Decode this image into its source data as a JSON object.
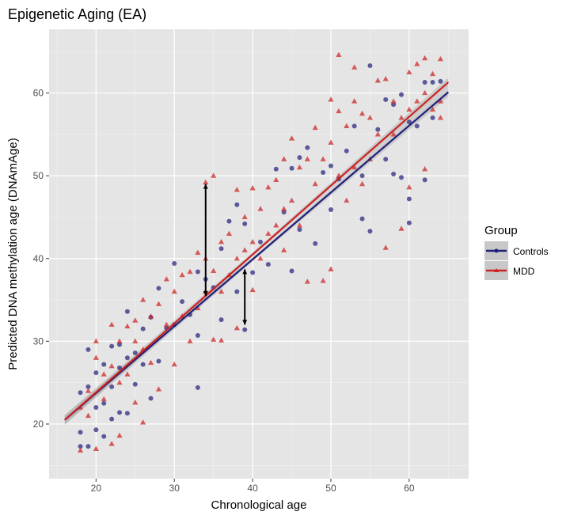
{
  "chart_data": {
    "type": "scatter",
    "title": "Epigenetic Aging (EA)",
    "xlabel": "Chronological age",
    "ylabel": "Predicted DNA methylation age (DNAmAge)",
    "xlim": [
      14.0,
      67.6
    ],
    "ylim": [
      13.4,
      67.7
    ],
    "xticks": [
      20,
      30,
      40,
      50,
      60
    ],
    "yticks": [
      20,
      30,
      40,
      50,
      60
    ],
    "grid": true,
    "background": "#e5e5e5",
    "legend": {
      "title": "Group",
      "placement": "right"
    },
    "series": [
      {
        "name": "Controls",
        "marker": "circle",
        "color": "#1f1f7a",
        "fit_line": {
          "x": [
            16,
            65
          ],
          "y": [
            20.5,
            60.1
          ]
        },
        "points": [
          [
            18,
            23.8
          ],
          [
            18,
            19
          ],
          [
            18,
            17.3
          ],
          [
            19,
            29
          ],
          [
            19,
            24.5
          ],
          [
            19,
            17.3
          ],
          [
            20,
            26.2
          ],
          [
            20,
            22
          ],
          [
            20,
            19.3
          ],
          [
            21,
            27.2
          ],
          [
            21,
            22.5
          ],
          [
            21,
            18.5
          ],
          [
            22,
            29.4
          ],
          [
            22,
            24.5
          ],
          [
            22,
            20.6
          ],
          [
            23,
            29.6
          ],
          [
            23,
            26.8
          ],
          [
            23,
            21.4
          ],
          [
            24,
            33.6
          ],
          [
            24,
            28
          ],
          [
            24,
            21.3
          ],
          [
            25,
            28.6
          ],
          [
            25,
            24.8
          ],
          [
            26,
            31.5
          ],
          [
            26,
            27.2
          ],
          [
            27,
            32.9
          ],
          [
            27,
            23.1
          ],
          [
            28,
            36.4
          ],
          [
            28,
            27.6
          ],
          [
            29,
            31.6
          ],
          [
            30,
            39.4
          ],
          [
            30,
            32
          ],
          [
            31,
            34.8
          ],
          [
            32,
            33.2
          ],
          [
            33,
            38.4
          ],
          [
            33,
            30.7
          ],
          [
            33,
            24.4
          ],
          [
            34,
            37.5
          ],
          [
            35,
            36.5
          ],
          [
            36,
            41.2
          ],
          [
            36,
            32.6
          ],
          [
            37,
            44.5
          ],
          [
            38,
            46.5
          ],
          [
            38,
            36
          ],
          [
            39,
            31.4
          ],
          [
            39,
            44.2
          ],
          [
            40,
            38.3
          ],
          [
            41,
            42
          ],
          [
            42,
            39.3
          ],
          [
            43,
            50.8
          ],
          [
            44,
            45.6
          ],
          [
            45,
            50.9
          ],
          [
            45,
            38.5
          ],
          [
            46,
            52.2
          ],
          [
            46,
            43.5
          ],
          [
            47,
            53.4
          ],
          [
            48,
            41.8
          ],
          [
            49,
            50.4
          ],
          [
            50,
            51.2
          ],
          [
            50,
            45.9
          ],
          [
            51,
            49.6
          ],
          [
            52,
            53
          ],
          [
            53,
            56
          ],
          [
            54,
            44.8
          ],
          [
            54,
            50
          ],
          [
            55,
            63.3
          ],
          [
            55,
            43.3
          ],
          [
            56,
            55.6
          ],
          [
            57,
            59.2
          ],
          [
            57,
            52
          ],
          [
            58,
            58.6
          ],
          [
            58,
            50.2
          ],
          [
            59,
            59.8
          ],
          [
            59,
            49.8
          ],
          [
            60,
            56.5
          ],
          [
            60,
            47.2
          ],
          [
            60,
            44.3
          ],
          [
            61,
            56
          ],
          [
            62,
            61.3
          ],
          [
            62,
            49.5
          ],
          [
            63,
            61.3
          ],
          [
            63,
            57
          ],
          [
            64,
            61.4
          ]
        ]
      },
      {
        "name": "MDD",
        "marker": "triangle",
        "color": "#cc2222",
        "fit_line": {
          "x": [
            16,
            65
          ],
          "y": [
            20.5,
            61.3
          ]
        },
        "points": [
          [
            18,
            16.8
          ],
          [
            18,
            22
          ],
          [
            19,
            21
          ],
          [
            19,
            24
          ],
          [
            20,
            30
          ],
          [
            20,
            28
          ],
          [
            20,
            17
          ],
          [
            21,
            26
          ],
          [
            21,
            23
          ],
          [
            22,
            32
          ],
          [
            22,
            27
          ],
          [
            22,
            17.6
          ],
          [
            23,
            30
          ],
          [
            23,
            25
          ],
          [
            23,
            18.6
          ],
          [
            24,
            31.8
          ],
          [
            24,
            26
          ],
          [
            25,
            32.5
          ],
          [
            25,
            30
          ],
          [
            25,
            22.6
          ],
          [
            26,
            35
          ],
          [
            26,
            29
          ],
          [
            26,
            20.2
          ],
          [
            27,
            33
          ],
          [
            27,
            27.4
          ],
          [
            28,
            34.5
          ],
          [
            28,
            24.2
          ],
          [
            29,
            37.5
          ],
          [
            29,
            32
          ],
          [
            30,
            36
          ],
          [
            30,
            27.2
          ],
          [
            31,
            38
          ],
          [
            31,
            33
          ],
          [
            32,
            38.4
          ],
          [
            32,
            30
          ],
          [
            33,
            40.7
          ],
          [
            33,
            34
          ],
          [
            34,
            49.2
          ],
          [
            34,
            40
          ],
          [
            34,
            36
          ],
          [
            35,
            50
          ],
          [
            35,
            38.5
          ],
          [
            35,
            30.2
          ],
          [
            36,
            42
          ],
          [
            36,
            36
          ],
          [
            36,
            30.1
          ],
          [
            37,
            43
          ],
          [
            37,
            38
          ],
          [
            38,
            48.3
          ],
          [
            38,
            40
          ],
          [
            38,
            31.6
          ],
          [
            39,
            45
          ],
          [
            39,
            41
          ],
          [
            40,
            48.5
          ],
          [
            40,
            42
          ],
          [
            40,
            36.2
          ],
          [
            41,
            46
          ],
          [
            41,
            40
          ],
          [
            42,
            48.6
          ],
          [
            42,
            43
          ],
          [
            43,
            49.5
          ],
          [
            43,
            44
          ],
          [
            44,
            52
          ],
          [
            44,
            46
          ],
          [
            44,
            41
          ],
          [
            45,
            54.5
          ],
          [
            45,
            47
          ],
          [
            46,
            51
          ],
          [
            46,
            44
          ],
          [
            47,
            52
          ],
          [
            47,
            37.2
          ],
          [
            48,
            55.8
          ],
          [
            48,
            49
          ],
          [
            49,
            52
          ],
          [
            49,
            37.3
          ],
          [
            50,
            59.2
          ],
          [
            50,
            54
          ],
          [
            50,
            38.7
          ],
          [
            51,
            64.6
          ],
          [
            51,
            57.8
          ],
          [
            51,
            50
          ],
          [
            52,
            56
          ],
          [
            52,
            47
          ],
          [
            53,
            63.1
          ],
          [
            53,
            59
          ],
          [
            53,
            51
          ],
          [
            54,
            57.5
          ],
          [
            54,
            49
          ],
          [
            55,
            57
          ],
          [
            55,
            52
          ],
          [
            56,
            61.5
          ],
          [
            56,
            55
          ],
          [
            57,
            61.7
          ],
          [
            57,
            41.3
          ],
          [
            58,
            59
          ],
          [
            58,
            55
          ],
          [
            59,
            57
          ],
          [
            59,
            43.6
          ],
          [
            60,
            62.5
          ],
          [
            60,
            58
          ],
          [
            60,
            48.6
          ],
          [
            61,
            63.5
          ],
          [
            61,
            59
          ],
          [
            62,
            64.2
          ],
          [
            62,
            60
          ],
          [
            62,
            50.8
          ],
          [
            63,
            62.3
          ],
          [
            63,
            58
          ],
          [
            64,
            64.1
          ],
          [
            64,
            59
          ],
          [
            64,
            57
          ]
        ]
      }
    ],
    "annotations": [
      {
        "type": "double-arrow",
        "x": 34,
        "y": [
          35.5,
          49
        ]
      },
      {
        "type": "double-arrow",
        "x": 39,
        "y": [
          38.7,
          32
        ]
      }
    ]
  }
}
